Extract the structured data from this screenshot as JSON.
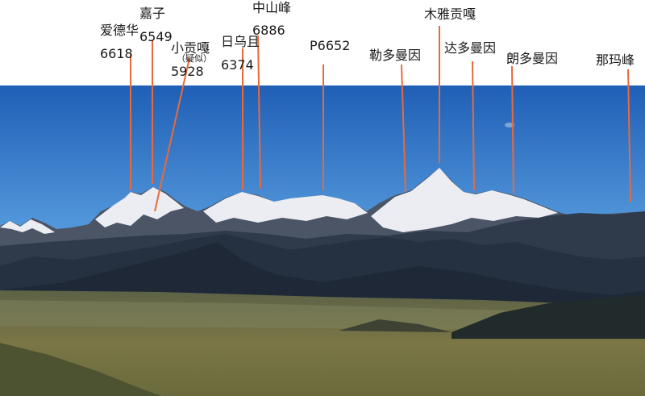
{
  "peaks": [
    {
      "name": "爱德华",
      "elevation": "6618"
    },
    {
      "name": "嘉子",
      "elevation": "6549"
    },
    {
      "name": "小贡嘎",
      "note": "（疑似）",
      "elevation": "5928"
    },
    {
      "name": "日乌且",
      "elevation": "6374"
    },
    {
      "name": "中山峰",
      "elevation": "6886"
    },
    {
      "name": "P6652"
    },
    {
      "name": "勒多曼因"
    },
    {
      "name": "木雅贡嘎"
    },
    {
      "name": "达多曼因"
    },
    {
      "name": "朗多曼因"
    },
    {
      "name": "那玛峰"
    }
  ],
  "colors": {
    "sky_top": "#1f5fb6",
    "sky_bottom": "#4c93d8",
    "snow": "#f4f7fb",
    "hills_dark": "#2b3646",
    "grassland": "#6b6a40",
    "leader_line": "#e86a3c"
  }
}
